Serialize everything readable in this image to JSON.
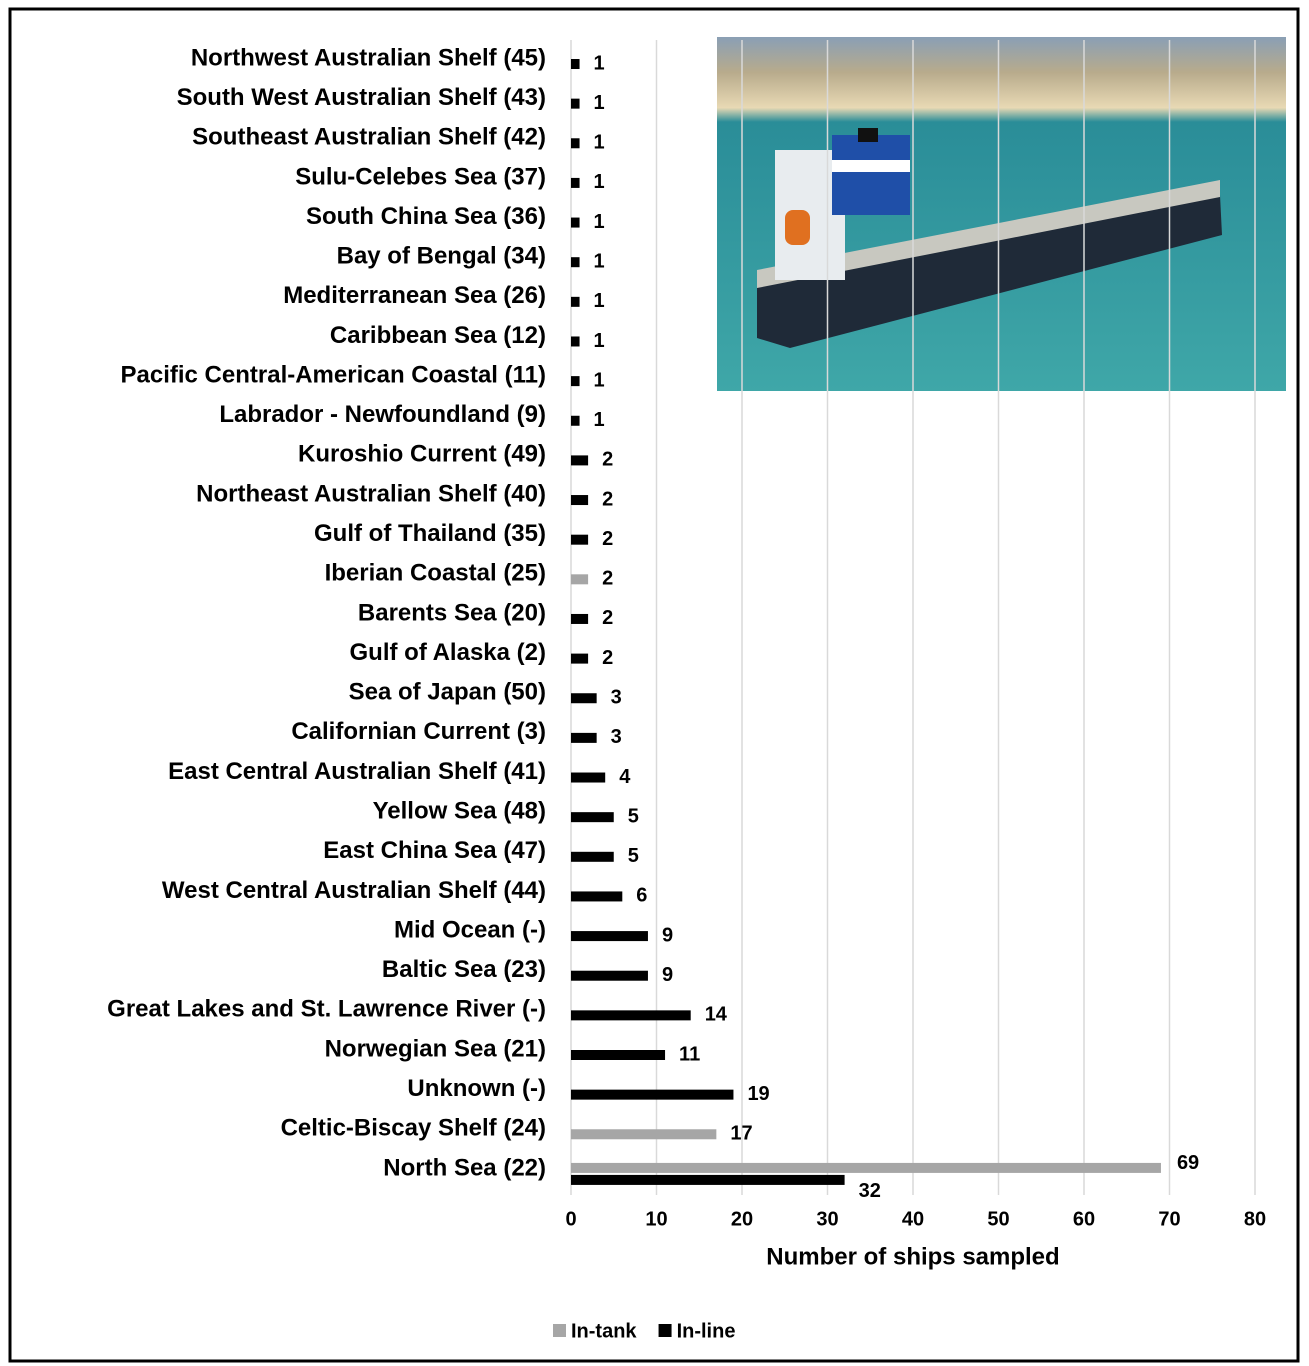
{
  "chart_data": {
    "type": "bar",
    "orientation": "horizontal",
    "categories": [
      "Northwest Australian Shelf (45)",
      "South West Australian Shelf (43)",
      "Southeast Australian Shelf (42)",
      "Sulu-Celebes Sea (37)",
      "South China Sea (36)",
      "Bay of Bengal (34)",
      "Mediterranean Sea (26)",
      "Caribbean Sea (12)",
      "Pacific Central-American Coastal (11)",
      "Labrador - Newfoundland (9)",
      "Kuroshio Current (49)",
      "Northeast Australian Shelf (40)",
      "Gulf of Thailand (35)",
      "Iberian Coastal (25)",
      "Barents Sea (20)",
      "Gulf of Alaska (2)",
      "Sea of Japan (50)",
      "Californian Current (3)",
      "East Central Australian Shelf (41)",
      "Yellow Sea (48)",
      "East China Sea (47)",
      "West Central Australian Shelf (44)",
      "Mid Ocean (-)",
      "Baltic Sea (23)",
      "Great Lakes and St. Lawrence River (-)",
      "Norwegian Sea (21)",
      "Unknown (-)",
      "Celtic-Biscay Shelf (24)",
      "North Sea (22)"
    ],
    "series": [
      {
        "name": "In-tank",
        "color": "#a6a6a6",
        "values": [
          null,
          null,
          null,
          null,
          null,
          null,
          null,
          null,
          null,
          null,
          null,
          null,
          null,
          2,
          null,
          null,
          null,
          null,
          null,
          null,
          null,
          null,
          null,
          null,
          null,
          null,
          null,
          17,
          69
        ]
      },
      {
        "name": "In-line",
        "color": "#000000",
        "values": [
          1,
          1,
          1,
          1,
          1,
          1,
          1,
          1,
          1,
          1,
          2,
          2,
          2,
          null,
          2,
          2,
          3,
          3,
          4,
          5,
          5,
          6,
          9,
          9,
          14,
          11,
          19,
          null,
          32
        ]
      }
    ],
    "xlabel": "Number of ships sampled",
    "xlim": [
      0,
      80
    ],
    "xticks": [
      0,
      10,
      20,
      30,
      40,
      50,
      60,
      70,
      80
    ],
    "grid": true,
    "legend": "bottom"
  }
}
